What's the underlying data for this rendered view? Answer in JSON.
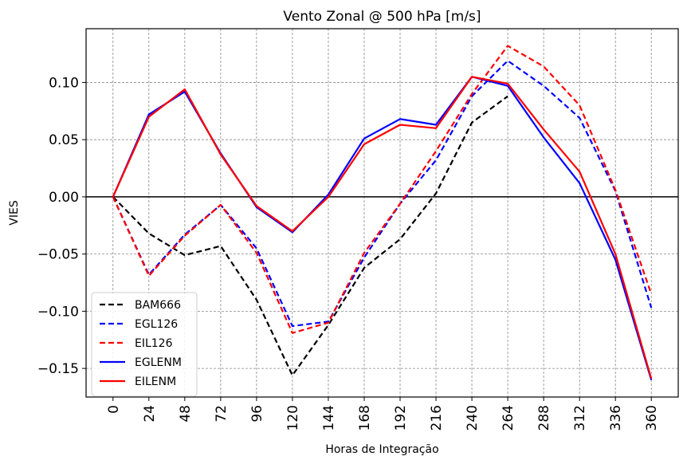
{
  "chart_data": {
    "type": "line",
    "title": "Vento Zonal @ 500 hPa [m/s]",
    "xlabel": "Horas de Integração",
    "ylabel": "VIES",
    "x": [
      0,
      24,
      48,
      72,
      96,
      120,
      144,
      168,
      192,
      216,
      240,
      264,
      288,
      312,
      336,
      360
    ],
    "xlim": [
      -18,
      378
    ],
    "ylim": [
      -0.175,
      0.147
    ],
    "yticks": [
      -0.15,
      -0.1,
      -0.05,
      0.0,
      0.05,
      0.1
    ],
    "ytick_labels": [
      "−0.15",
      "−0.10",
      "−0.05",
      "0.00",
      "0.05",
      "0.10"
    ],
    "xtick_labels": [
      "0",
      "24",
      "48",
      "72",
      "96",
      "120",
      "144",
      "168",
      "192",
      "216",
      "240",
      "264",
      "288",
      "312",
      "336",
      "360"
    ],
    "grid": true,
    "zero_line": true,
    "legend_position": "lower-left",
    "series": [
      {
        "name": "BAM666",
        "color": "#000000",
        "dashed": true,
        "values": [
          0.0,
          -0.032,
          -0.051,
          -0.043,
          -0.09,
          -0.156,
          -0.112,
          -0.062,
          -0.037,
          0.003,
          0.065,
          0.088,
          null,
          null,
          null,
          null
        ]
      },
      {
        "name": "EGL126",
        "color": "#0000ff",
        "dashed": true,
        "values": [
          0.0,
          -0.068,
          -0.033,
          -0.007,
          -0.045,
          -0.113,
          -0.109,
          -0.053,
          -0.006,
          0.032,
          0.088,
          0.119,
          0.097,
          0.069,
          0.005,
          -0.097
        ]
      },
      {
        "name": "EIL126",
        "color": "#ff0000",
        "dashed": true,
        "values": [
          0.0,
          -0.069,
          -0.034,
          -0.007,
          -0.049,
          -0.119,
          -0.11,
          -0.049,
          -0.006,
          0.04,
          0.09,
          0.132,
          0.114,
          0.08,
          0.006,
          -0.085
        ]
      },
      {
        "name": "EGLENM",
        "color": "#0000ff",
        "dashed": false,
        "values": [
          0.0,
          0.072,
          0.092,
          0.038,
          -0.009,
          -0.031,
          0.002,
          0.051,
          0.068,
          0.063,
          0.105,
          0.097,
          0.052,
          0.012,
          -0.055,
          -0.16
        ]
      },
      {
        "name": "EILENM",
        "color": "#ff0000",
        "dashed": false,
        "values": [
          0.0,
          0.07,
          0.094,
          0.037,
          -0.008,
          -0.03,
          0.0,
          0.046,
          0.063,
          0.06,
          0.105,
          0.099,
          0.059,
          0.022,
          -0.05,
          -0.159
        ]
      }
    ]
  }
}
